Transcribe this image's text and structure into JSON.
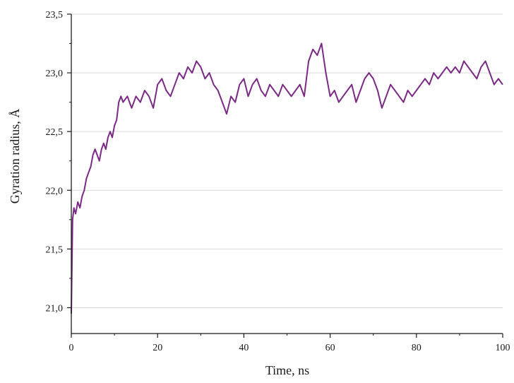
{
  "chart_data": {
    "type": "line",
    "title": "",
    "xlabel": "Time, ns",
    "ylabel": "Gyration radius, Å",
    "xlim": [
      0,
      100
    ],
    "ylim": [
      20.78,
      23.5
    ],
    "x_ticks": [
      0,
      20,
      40,
      60,
      80,
      100
    ],
    "x_tick_labels": [
      "0",
      "20",
      "40",
      "60",
      "80",
      "100"
    ],
    "y_ticks": [
      21.0,
      21.5,
      22.0,
      22.5,
      23.0,
      23.5
    ],
    "y_tick_labels": [
      "21,0",
      "21,5",
      "22,0",
      "22,5",
      "23,0",
      "23,5"
    ],
    "grid": "horizontal",
    "colors": {
      "line": "#7a2a85",
      "axis": "#1a1a1a",
      "grid": "#d9d9d9"
    },
    "series": [
      {
        "name": "",
        "x": [
          0,
          0.3,
          0.6,
          1,
          1.5,
          2,
          2.5,
          3,
          3.5,
          4,
          4.5,
          5,
          5.5,
          6,
          6.5,
          7,
          7.5,
          8,
          8.5,
          9,
          9.5,
          10,
          10.5,
          11,
          11.5,
          12,
          13,
          14,
          15,
          16,
          17,
          18,
          19,
          20,
          21,
          22,
          23,
          24,
          25,
          26,
          27,
          28,
          29,
          30,
          31,
          32,
          33,
          34,
          35,
          36,
          37,
          38,
          39,
          40,
          41,
          42,
          43,
          44,
          45,
          46,
          47,
          48,
          49,
          50,
          51,
          52,
          53,
          54,
          55,
          56,
          57,
          58,
          59,
          60,
          61,
          62,
          63,
          64,
          65,
          66,
          67,
          68,
          69,
          70,
          71,
          72,
          73,
          74,
          75,
          76,
          77,
          78,
          79,
          80,
          81,
          82,
          83,
          84,
          85,
          86,
          87,
          88,
          89,
          90,
          91,
          92,
          93,
          94,
          95,
          96,
          97,
          98,
          99,
          100
        ],
        "values": [
          20.95,
          21.75,
          21.85,
          21.8,
          21.9,
          21.85,
          21.95,
          22.0,
          22.1,
          22.15,
          22.2,
          22.3,
          22.35,
          22.3,
          22.25,
          22.35,
          22.4,
          22.35,
          22.45,
          22.5,
          22.45,
          22.55,
          22.6,
          22.75,
          22.8,
          22.75,
          22.8,
          22.7,
          22.8,
          22.75,
          22.85,
          22.8,
          22.7,
          22.9,
          22.95,
          22.85,
          22.8,
          22.9,
          23.0,
          22.95,
          23.05,
          23.0,
          23.1,
          23.05,
          22.95,
          23.0,
          22.9,
          22.85,
          22.75,
          22.65,
          22.8,
          22.75,
          22.9,
          22.95,
          22.8,
          22.9,
          22.95,
          22.85,
          22.8,
          22.9,
          22.85,
          22.8,
          22.9,
          22.85,
          22.8,
          22.85,
          22.9,
          22.8,
          23.1,
          23.2,
          23.15,
          23.25,
          23.0,
          22.8,
          22.85,
          22.75,
          22.8,
          22.85,
          22.9,
          22.75,
          22.85,
          22.95,
          23.0,
          22.95,
          22.85,
          22.7,
          22.8,
          22.9,
          22.85,
          22.8,
          22.75,
          22.85,
          22.8,
          22.85,
          22.9,
          22.95,
          22.9,
          23.0,
          22.95,
          23.0,
          23.05,
          23.0,
          23.05,
          23.0,
          23.1,
          23.05,
          23.0,
          22.95,
          23.05,
          23.1,
          23.0,
          22.9,
          22.95,
          22.9
        ]
      }
    ]
  }
}
